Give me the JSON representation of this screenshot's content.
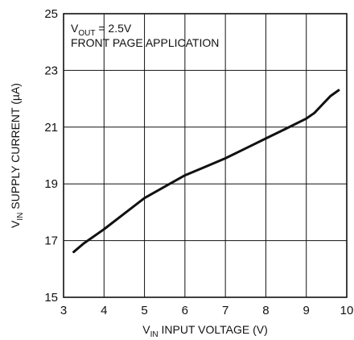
{
  "chart_data": {
    "type": "line",
    "title": "",
    "xlabel": {
      "main": "V",
      "sub": "IN",
      "rest": " INPUT VOLTAGE (V)"
    },
    "ylabel": {
      "main": "V",
      "sub": "IN",
      "rest": " SUPPLY CURRENT (µA)"
    },
    "annotation": {
      "line1": {
        "main": "V",
        "sub": "OUT",
        "rest": " = 2.5V"
      },
      "line2": "FRONT PAGE APPLICATION"
    },
    "xlim": [
      3,
      10
    ],
    "ylim": [
      15,
      25
    ],
    "x_ticks": [
      "3",
      "4",
      "5",
      "6",
      "7",
      "8",
      "9",
      "10"
    ],
    "y_ticks": [
      "15",
      "17",
      "19",
      "21",
      "23",
      "25"
    ],
    "grid": true,
    "series": [
      {
        "x": [
          3.25,
          3.5,
          4.0,
          4.5,
          5.0,
          5.5,
          6.0,
          6.5,
          7.0,
          7.5,
          8.0,
          8.5,
          9.0,
          9.2,
          9.4,
          9.6,
          9.8
        ],
        "y": [
          16.6,
          16.9,
          17.4,
          17.95,
          18.5,
          18.9,
          19.3,
          19.6,
          19.9,
          20.25,
          20.6,
          20.95,
          21.3,
          21.5,
          21.8,
          22.1,
          22.3
        ]
      }
    ]
  }
}
